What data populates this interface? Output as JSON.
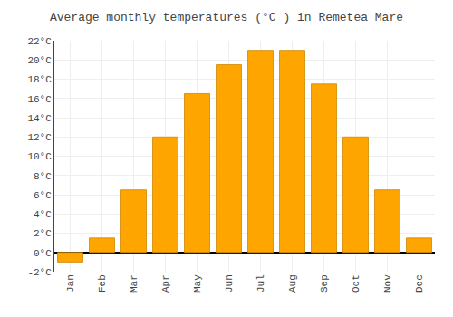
{
  "chart_data": {
    "type": "bar",
    "title": "Average monthly temperatures (°C ) in Remetea Mare",
    "categories": [
      "Jan",
      "Feb",
      "Mar",
      "Apr",
      "May",
      "Jun",
      "Jul",
      "Aug",
      "Sep",
      "Oct",
      "Nov",
      "Dec"
    ],
    "values": [
      -1.0,
      1.5,
      6.5,
      12.0,
      16.5,
      19.5,
      21.0,
      21.0,
      17.5,
      12.0,
      6.5,
      1.5
    ],
    "color": "#FFA500",
    "ylim": [
      -2,
      22
    ],
    "yticks": [
      {
        "value": -2,
        "label": "-2°C"
      },
      {
        "value": 0,
        "label": "0°C"
      },
      {
        "value": 2,
        "label": "2°C"
      },
      {
        "value": 4,
        "label": "4°C"
      },
      {
        "value": 6,
        "label": "6°C"
      },
      {
        "value": 8,
        "label": "8°C"
      },
      {
        "value": 10,
        "label": "10°C"
      },
      {
        "value": 12,
        "label": "12°C"
      },
      {
        "value": 14,
        "label": "14°C"
      },
      {
        "value": 16,
        "label": "16°C"
      },
      {
        "value": 18,
        "label": "18°C"
      },
      {
        "value": 20,
        "label": "20°C"
      },
      {
        "value": 22,
        "label": "22°C"
      }
    ],
    "grid": true
  }
}
